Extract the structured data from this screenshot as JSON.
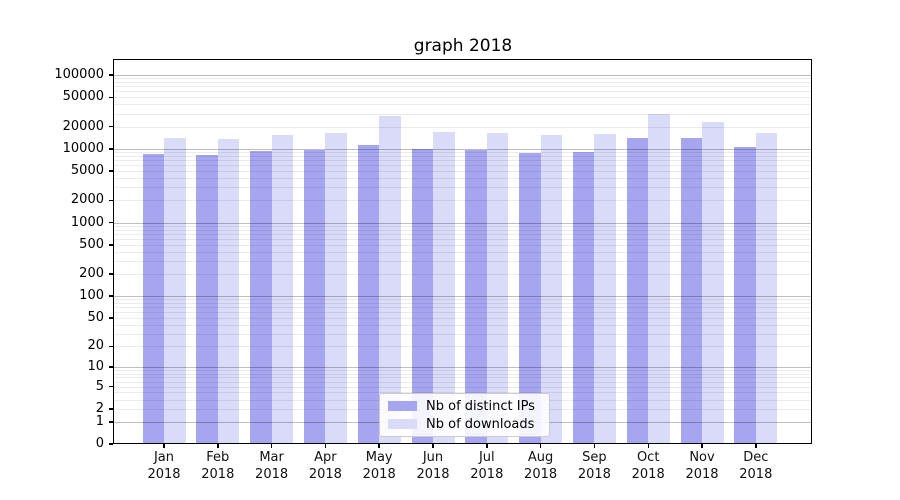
{
  "title": "graph 2018",
  "chart_data": {
    "type": "bar",
    "title": "graph 2018",
    "categories": [
      "Jan 2018",
      "Feb 2018",
      "Mar 2018",
      "Apr 2018",
      "May 2018",
      "Jun 2018",
      "Jul 2018",
      "Aug 2018",
      "Sep 2018",
      "Oct 2018",
      "Nov 2018",
      "Dec 2018"
    ],
    "series": [
      {
        "name": "Nb of distinct IPs",
        "color": "#a5a5f0",
        "values": [
          8400,
          8200,
          9300,
          9600,
          11400,
          9900,
          9600,
          8900,
          9000,
          13900,
          14200,
          10500
        ]
      },
      {
        "name": "Nb of downloads",
        "color": "#dadaf9",
        "values": [
          13900,
          13600,
          15400,
          16600,
          28100,
          16700,
          16200,
          15400,
          15700,
          29300,
          23300,
          16500
        ]
      }
    ],
    "xlabel": "",
    "ylabel": "",
    "y_scale": "log1p",
    "ylim": [
      0,
      160000
    ],
    "y_ticks": [
      0,
      1,
      2,
      5,
      10,
      20,
      50,
      100,
      200,
      500,
      1000,
      2000,
      5000,
      10000,
      20000,
      50000,
      100000
    ],
    "grid": "both",
    "gridline_major_color": "#bfbfbf",
    "gridline_minor_color": "#e8e8e8",
    "legend_position": "inside-bottom-center-left",
    "background_color": "#ffffff",
    "axis_color": "#000000"
  }
}
